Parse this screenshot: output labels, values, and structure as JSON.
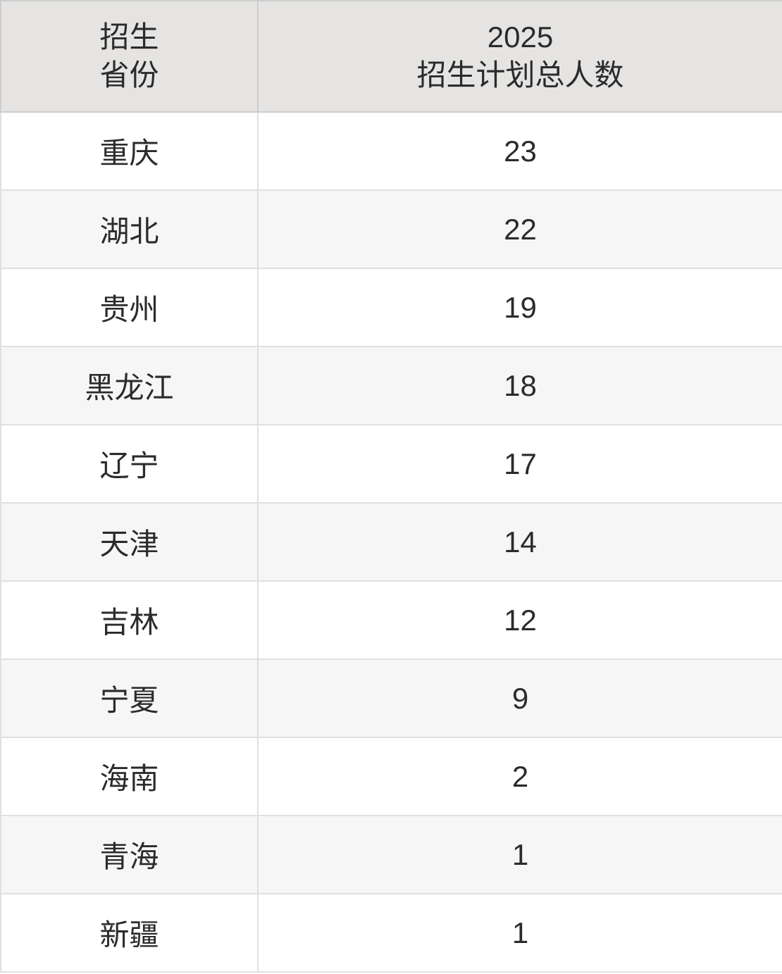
{
  "colors": {
    "header_bg": "#e5e4e3",
    "stripe_bg": "#f6f6f6",
    "row_bg": "#ffffff",
    "border": "#e0e0e0",
    "header_border": "#cdcdcd",
    "text": "#2b2b2b"
  },
  "table": {
    "columns": [
      {
        "label": "招生\n省份"
      },
      {
        "label": "2025\n招生计划总人数"
      }
    ],
    "rows": [
      {
        "province": "重庆",
        "count": "23"
      },
      {
        "province": "湖北",
        "count": "22"
      },
      {
        "province": "贵州",
        "count": "19"
      },
      {
        "province": "黑龙江",
        "count": "18"
      },
      {
        "province": "辽宁",
        "count": "17"
      },
      {
        "province": "天津",
        "count": "14"
      },
      {
        "province": "吉林",
        "count": "12"
      },
      {
        "province": "宁夏",
        "count": "9"
      },
      {
        "province": "海南",
        "count": "2"
      },
      {
        "province": "青海",
        "count": "1"
      },
      {
        "province": "新疆",
        "count": "1"
      }
    ]
  },
  "chart_data": {
    "type": "table",
    "title": "2025招生计划总人数",
    "columns": [
      "招生省份",
      "2025招生计划总人数"
    ],
    "categories": [
      "重庆",
      "湖北",
      "贵州",
      "黑龙江",
      "辽宁",
      "天津",
      "吉林",
      "宁夏",
      "海南",
      "青海",
      "新疆"
    ],
    "values": [
      23,
      22,
      19,
      18,
      17,
      14,
      12,
      9,
      2,
      1,
      1
    ]
  }
}
